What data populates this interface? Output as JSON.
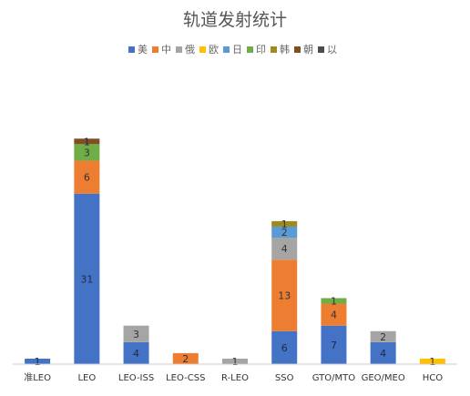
{
  "chart_data": {
    "type": "bar",
    "stacked": true,
    "title": "轨道发射统计",
    "legend_position": "top",
    "grid": false,
    "categories": [
      "准LEO",
      "LEO",
      "LEO-ISS",
      "LEO-CSS",
      "R-LEO",
      "SSO",
      "GTO/MTO",
      "GEO/MEO",
      "HCO"
    ],
    "series": [
      {
        "name": "美",
        "color": "#4472C4",
        "values": [
          1,
          31,
          4,
          0,
          0,
          6,
          7,
          4,
          0
        ]
      },
      {
        "name": "中",
        "color": "#ED7D31",
        "values": [
          0,
          6,
          0,
          2,
          0,
          13,
          4,
          0,
          0
        ]
      },
      {
        "name": "俄",
        "color": "#A5A5A5",
        "values": [
          0,
          0,
          3,
          0,
          1,
          4,
          0,
          2,
          0
        ]
      },
      {
        "name": "欧",
        "color": "#FFC000",
        "values": [
          0,
          0,
          0,
          0,
          0,
          0,
          0,
          0,
          1
        ]
      },
      {
        "name": "日",
        "color": "#5B9BD5",
        "values": [
          0,
          0,
          0,
          0,
          0,
          2,
          0,
          0,
          0
        ]
      },
      {
        "name": "印",
        "color": "#70AD47",
        "values": [
          0,
          3,
          0,
          0,
          0,
          0,
          1,
          0,
          0
        ]
      },
      {
        "name": "韩",
        "color": "#9E8A1F",
        "values": [
          0,
          0,
          0,
          0,
          0,
          1,
          0,
          0,
          0
        ]
      },
      {
        "name": "朝",
        "color": "#7F4F24",
        "values": [
          0,
          1,
          0,
          0,
          0,
          0,
          0,
          0,
          0
        ]
      },
      {
        "name": "以",
        "color": "#4D4D4D",
        "values": [
          0,
          0,
          0,
          0,
          0,
          0,
          0,
          0,
          0
        ]
      }
    ],
    "ylim": [
      0,
      48
    ]
  }
}
